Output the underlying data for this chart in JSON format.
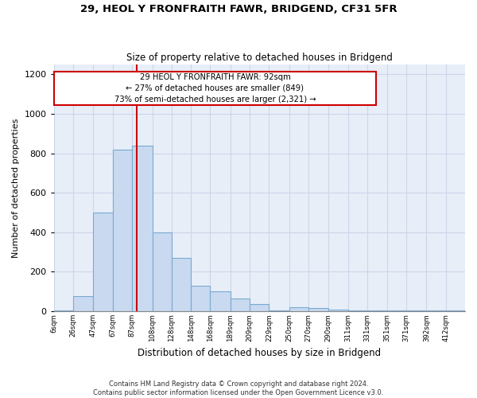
{
  "title1": "29, HEOL Y FRONFRAITH FAWR, BRIDGEND, CF31 5FR",
  "title2": "Size of property relative to detached houses in Bridgend",
  "xlabel": "Distribution of detached houses by size in Bridgend",
  "ylabel": "Number of detached properties",
  "footnote1": "Contains HM Land Registry data © Crown copyright and database right 2024.",
  "footnote2": "Contains public sector information licensed under the Open Government Licence v3.0.",
  "annotation_line1": "29 HEOL Y FRONFRAITH FAWR: 92sqm",
  "annotation_line2": "← 27% of detached houses are smaller (849)",
  "annotation_line3": "73% of semi-detached houses are larger (2,321) →",
  "bar_color": "#c8d9f0",
  "bar_edge_color": "#7aaad0",
  "grid_color": "#cdd5e8",
  "background_color": "#e8eef8",
  "vline_color": "#cc0000",
  "vline_x": 92,
  "categories": [
    "6sqm",
    "26sqm",
    "47sqm",
    "67sqm",
    "87sqm",
    "108sqm",
    "128sqm",
    "148sqm",
    "168sqm",
    "189sqm",
    "209sqm",
    "229sqm",
    "250sqm",
    "270sqm",
    "290sqm",
    "311sqm",
    "331sqm",
    "351sqm",
    "371sqm",
    "392sqm",
    "412sqm"
  ],
  "bin_edges": [
    6,
    26,
    47,
    67,
    87,
    108,
    128,
    148,
    168,
    189,
    209,
    229,
    250,
    270,
    290,
    311,
    331,
    351,
    371,
    392,
    412,
    432
  ],
  "bar_heights": [
    5,
    75,
    500,
    820,
    840,
    400,
    270,
    130,
    100,
    65,
    35,
    5,
    20,
    15,
    10,
    5,
    5,
    5,
    5,
    5,
    5
  ],
  "ylim": [
    0,
    1250
  ],
  "yticks": [
    0,
    200,
    400,
    600,
    800,
    1000,
    1200
  ]
}
